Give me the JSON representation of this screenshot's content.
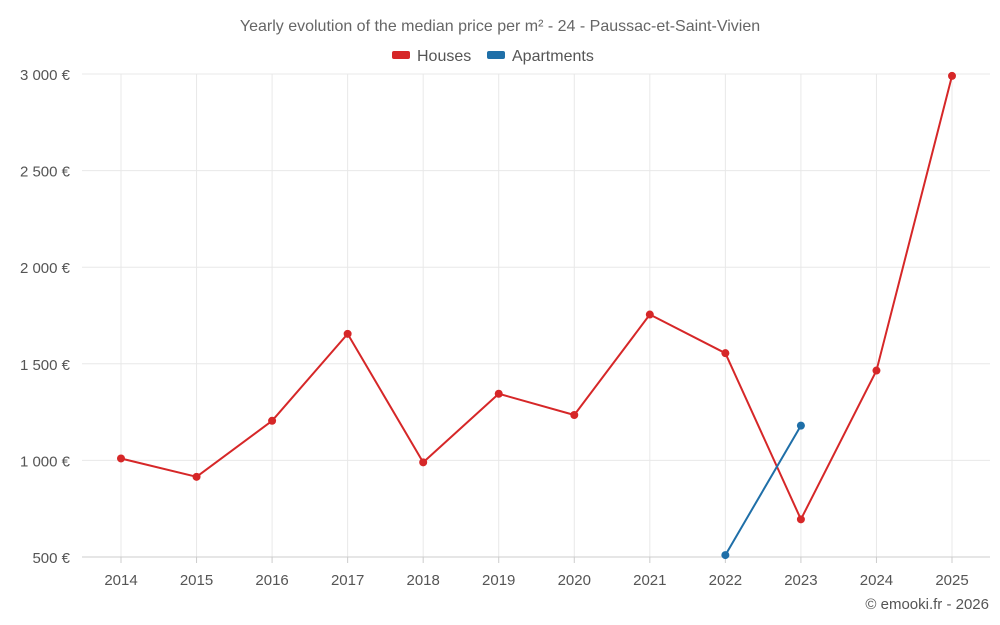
{
  "chart_data": {
    "type": "line",
    "title": "Yearly evolution of the median price per m² - 24 - Paussac-et-Saint-Vivien",
    "x": [
      "2014",
      "2015",
      "2016",
      "2017",
      "2018",
      "2019",
      "2020",
      "2021",
      "2022",
      "2023",
      "2024",
      "2025"
    ],
    "series": [
      {
        "name": "Houses",
        "color": "#d62728",
        "values": [
          1010,
          915,
          1205,
          1655,
          990,
          1345,
          1235,
          1755,
          1555,
          695,
          1465,
          2990
        ]
      },
      {
        "name": "Apartments",
        "color": "#1f6fa8",
        "values": [
          null,
          null,
          null,
          null,
          null,
          null,
          null,
          null,
          510,
          1180,
          null,
          null
        ]
      }
    ],
    "ylim": [
      500,
      3000
    ],
    "yticks": [
      500,
      1000,
      1500,
      2000,
      2500,
      3000
    ],
    "ytick_labels": [
      "500 €",
      "1 000 €",
      "1 500 €",
      "2 000 €",
      "2 500 €",
      "3 000 €"
    ],
    "grid": true,
    "legend": "top-center"
  },
  "credit": "© emooki.fr - 2026"
}
